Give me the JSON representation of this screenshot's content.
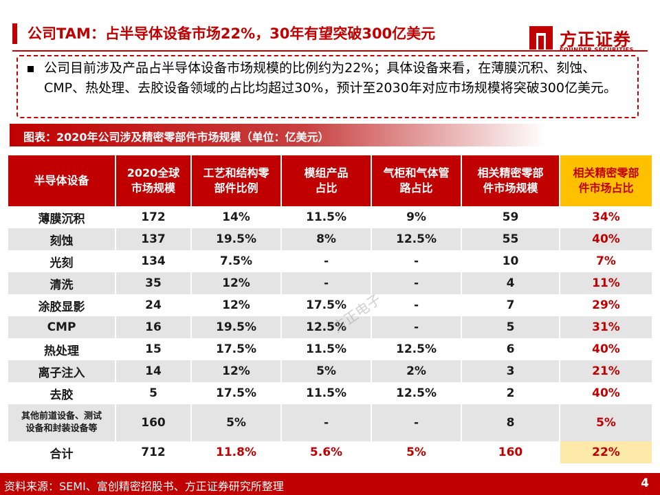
{
  "title": "公司TAM：占半导体设备市场22%，30年有望突破300亿美元",
  "logo": {
    "cn": "方正证券",
    "en": "FOUNDER SECURITIES"
  },
  "summary": "公司目前涉及产品占半导体设备市场规模的比例约为22%；具体设备来看，在薄膜沉积、刻蚀、CMP、热处理、去胶设备领域的占比均超过30%，预计至2030年对应市场规模将突破300亿美元。",
  "chart_title": "图表：2020年公司涉及精密零部件市场规模（单位：亿美元）",
  "table": {
    "headers": [
      [
        "半导体设备"
      ],
      [
        "2020全球",
        "市场规模"
      ],
      [
        "工艺和结构零",
        "部件比例"
      ],
      [
        "模组产品",
        "占比"
      ],
      [
        "气柜和气体管",
        "路占比"
      ],
      [
        "相关精密零部",
        "件市场规模"
      ],
      [
        "相关精密零部",
        "件市场占比"
      ]
    ],
    "rows": [
      {
        "name": [
          "薄膜沉积"
        ],
        "market": "172",
        "process": "14%",
        "module": "11.5%",
        "gas": "9%",
        "size": "59",
        "share": "34%"
      },
      {
        "name": [
          "刻蚀"
        ],
        "market": "137",
        "process": "19.5%",
        "module": "8%",
        "gas": "12.5%",
        "size": "55",
        "share": "40%"
      },
      {
        "name": [
          "光刻"
        ],
        "market": "134",
        "process": "7.5%",
        "module": "-",
        "gas": "-",
        "size": "10",
        "share": "7%"
      },
      {
        "name": [
          "清洗"
        ],
        "market": "35",
        "process": "12%",
        "module": "-",
        "gas": "-",
        "size": "4",
        "share": "11%"
      },
      {
        "name": [
          "涂胶显影"
        ],
        "market": "24",
        "process": "12%",
        "module": "17.5%",
        "gas": "-",
        "size": "7",
        "share": "29%"
      },
      {
        "name": [
          "CMP"
        ],
        "market": "16",
        "process": "19.5%",
        "module": "12.5%",
        "gas": "-",
        "size": "5",
        "share": "31%"
      },
      {
        "name": [
          "热处理"
        ],
        "market": "15",
        "process": "17.5%",
        "module": "11.5%",
        "gas": "12.5%",
        "size": "6",
        "share": "40%"
      },
      {
        "name": [
          "离子注入"
        ],
        "market": "14",
        "process": "12%",
        "module": "5%",
        "gas": "2%",
        "size": "3",
        "share": "21%"
      },
      {
        "name": [
          "去胶"
        ],
        "market": "5",
        "process": "17.5%",
        "module": "11.5%",
        "gas": "12.5%",
        "size": "2",
        "share": "40%"
      },
      {
        "name": [
          "其他前道设备、测试",
          "设备和封装设备等"
        ],
        "market": "160",
        "process": "5%",
        "module": "-",
        "gas": "-",
        "size": "8",
        "share": "5%"
      }
    ],
    "total": {
      "name": "合计",
      "market": "712",
      "process": "11.8%",
      "module": "5.6%",
      "gas": "5%",
      "size": "160",
      "share": "22%"
    }
  },
  "watermark": "方正电子",
  "footer": {
    "source": "资料来源：SEMI、富创精密招股书、方正证券研究所整理",
    "page": "4"
  },
  "colors": {
    "brand_red": "#c00000",
    "highlight_yellow": "#ffc000",
    "row_alt": "#e4e4e4",
    "total_highlight": "#fde9a9"
  }
}
